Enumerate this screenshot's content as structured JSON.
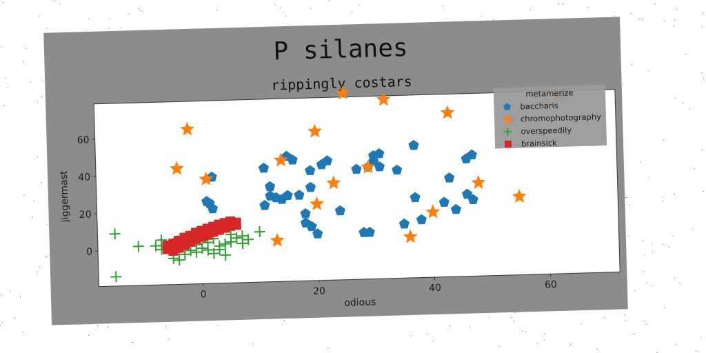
{
  "chart_data": {
    "type": "scatter",
    "title": "P silanes",
    "subtitle": "rippingly costars",
    "xlabel": "odious",
    "ylabel": "jiggermast",
    "xlim": [
      -18,
      72
    ],
    "ylim": [
      -19,
      79
    ],
    "xticks": [
      0,
      20,
      40,
      60
    ],
    "yticks": [
      0,
      20,
      40,
      60
    ],
    "grid": false,
    "legend": {
      "title": "metamerize",
      "placement": "top-right"
    },
    "colors": {
      "figure_background": "#8c8c8c",
      "plot_background": "#ffffff",
      "baccharis": "#1f77b4",
      "chromophotography": "#ff7f0e",
      "overspeedily": "#2ca02c",
      "brainsick": "#d62728"
    },
    "series": [
      {
        "name": "baccharis",
        "marker": "pentagon",
        "color": "#1f77b4",
        "points": [
          [
            2,
            38
          ],
          [
            1,
            25
          ],
          [
            1.5,
            24
          ],
          [
            2,
            21
          ],
          [
            11,
            42
          ],
          [
            11,
            22
          ],
          [
            12,
            32
          ],
          [
            12,
            27
          ],
          [
            13,
            26
          ],
          [
            14,
            25
          ],
          [
            15,
            27
          ],
          [
            15,
            48
          ],
          [
            16,
            46
          ],
          [
            17,
            27
          ],
          [
            18,
            17
          ],
          [
            18,
            12
          ],
          [
            19,
            31
          ],
          [
            19,
            40
          ],
          [
            19,
            10
          ],
          [
            20,
            6
          ],
          [
            21,
            43
          ],
          [
            22,
            45
          ],
          [
            24,
            18
          ],
          [
            27,
            40
          ],
          [
            28,
            6
          ],
          [
            29,
            6
          ],
          [
            29,
            41
          ],
          [
            30,
            44
          ],
          [
            30,
            47
          ],
          [
            31,
            48
          ],
          [
            31,
            41
          ],
          [
            34,
            39
          ],
          [
            35,
            10
          ],
          [
            37,
            52
          ],
          [
            37,
            24
          ],
          [
            38,
            12
          ],
          [
            42,
            21
          ],
          [
            43,
            34
          ],
          [
            44,
            17
          ],
          [
            46,
            25
          ],
          [
            46,
            44
          ],
          [
            47,
            46
          ],
          [
            47,
            22
          ]
        ]
      },
      {
        "name": "chromophotography",
        "marker": "star",
        "color": "#ff7f0e",
        "points": [
          [
            -2,
            64
          ],
          [
            -4,
            43
          ],
          [
            1,
            37
          ],
          [
            13,
            3
          ],
          [
            14,
            46
          ],
          [
            20,
            22
          ],
          [
            20,
            61
          ],
          [
            23,
            33
          ],
          [
            25,
            81
          ],
          [
            29,
            41
          ],
          [
            32,
            77
          ],
          [
            36,
            3
          ],
          [
            40,
            16
          ],
          [
            43,
            69
          ],
          [
            48,
            31
          ],
          [
            55,
            23
          ],
          [
            54,
            64
          ],
          [
            60,
            73
          ],
          [
            62,
            76
          ],
          [
            63,
            77
          ]
        ]
      },
      {
        "name": "overspeedily",
        "marker": "plus",
        "color": "#2ca02c",
        "points": [
          [
            -15,
            9
          ],
          [
            -15,
            -14
          ],
          [
            -11,
            2
          ],
          [
            -8,
            2
          ],
          [
            -7,
            0
          ],
          [
            -7,
            5
          ],
          [
            -6,
            1
          ],
          [
            -5,
            3
          ],
          [
            -5,
            -5
          ],
          [
            -4,
            -6
          ],
          [
            -4,
            0
          ],
          [
            -3,
            -3
          ],
          [
            -3,
            4
          ],
          [
            -2,
            -1
          ],
          [
            -2,
            6
          ],
          [
            -1,
            2
          ],
          [
            -1,
            -2
          ],
          [
            0,
            0
          ],
          [
            0,
            8
          ],
          [
            1,
            -1
          ],
          [
            1,
            3
          ],
          [
            2,
            -3
          ],
          [
            2,
            5
          ],
          [
            3,
            1
          ],
          [
            3,
            -1
          ],
          [
            4,
            2
          ],
          [
            4,
            -4
          ],
          [
            5,
            3
          ],
          [
            5,
            7
          ],
          [
            6,
            5
          ],
          [
            7,
            6
          ],
          [
            7,
            2
          ],
          [
            8,
            4
          ],
          [
            10,
            8
          ]
        ]
      },
      {
        "name": "brainsick",
        "marker": "square",
        "color": "#d62728",
        "points": [
          [
            -6,
            0
          ],
          [
            -5.7,
            0.5
          ],
          [
            -5.4,
            1
          ],
          [
            -5.1,
            1.4
          ],
          [
            -4.8,
            1.9
          ],
          [
            -4.5,
            2.3
          ],
          [
            -4.2,
            2.7
          ],
          [
            -3.9,
            3.1
          ],
          [
            -3.6,
            3.5
          ],
          [
            -3.3,
            3.9
          ],
          [
            -3,
            4.3
          ],
          [
            -2.7,
            4.7
          ],
          [
            -2.4,
            5
          ],
          [
            -2.1,
            5.4
          ],
          [
            -1.8,
            5.8
          ],
          [
            -1.5,
            6.1
          ],
          [
            -1.2,
            6.5
          ],
          [
            -0.9,
            6.8
          ],
          [
            -0.6,
            7.2
          ],
          [
            -0.3,
            7.5
          ],
          [
            0,
            7.8
          ],
          [
            0.3,
            8.1
          ],
          [
            0.6,
            8.4
          ],
          [
            0.9,
            8.7
          ],
          [
            1.2,
            9
          ],
          [
            1.5,
            9.3
          ],
          [
            1.8,
            9.6
          ],
          [
            2.1,
            9.9
          ],
          [
            2.4,
            10.2
          ],
          [
            2.7,
            10.5
          ],
          [
            3,
            10.8
          ],
          [
            3.3,
            11.1
          ],
          [
            3.6,
            11.3
          ],
          [
            3.9,
            11.6
          ],
          [
            4.2,
            11.9
          ],
          [
            4.5,
            12.1
          ],
          [
            4.8,
            12.4
          ],
          [
            5.1,
            12.6
          ],
          [
            5.4,
            12.9
          ],
          [
            5.7,
            13.1
          ],
          [
            6,
            13.3
          ],
          [
            -6,
            2
          ],
          [
            -5,
            3
          ],
          [
            -4,
            4.5
          ],
          [
            -3,
            6
          ],
          [
            -2,
            7
          ],
          [
            -1,
            8.5
          ],
          [
            0,
            9.5
          ],
          [
            1,
            10.5
          ],
          [
            2,
            11.5
          ],
          [
            3,
            12.5
          ],
          [
            4,
            13.3
          ],
          [
            5,
            14
          ],
          [
            -5,
            -1
          ],
          [
            -4,
            0.5
          ],
          [
            -3,
            2
          ],
          [
            -2,
            3.5
          ],
          [
            -1,
            5
          ],
          [
            0,
            6
          ],
          [
            1,
            7
          ],
          [
            2,
            8.5
          ],
          [
            3,
            9.5
          ],
          [
            4,
            10.5
          ],
          [
            5,
            11.5
          ],
          [
            6,
            12
          ]
        ]
      }
    ]
  }
}
